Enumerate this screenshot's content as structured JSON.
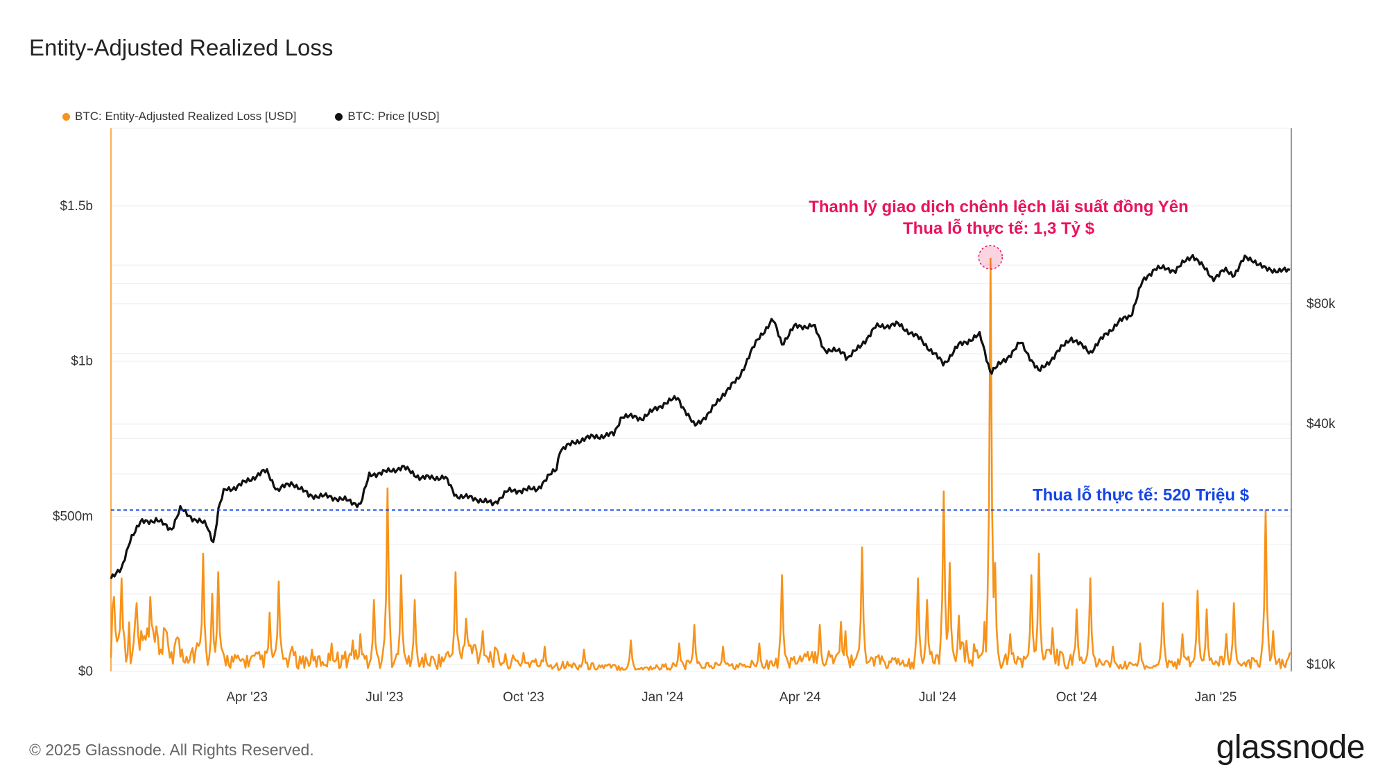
{
  "title": "Entity-Adjusted Realized Loss",
  "legend": {
    "loss_label": "BTC: Entity-Adjusted Realized Loss [USD]",
    "price_label": "BTC: Price [USD]"
  },
  "footer": "© 2025 Glassnode. All Rights Reserved.",
  "brand": "glassnode",
  "chart_data": {
    "type": "line",
    "title": "Entity-Adjusted Realized Loss",
    "x_range": [
      "2023-01-01",
      "2025-02-20"
    ],
    "x_ticks": [
      {
        "date": "2023-04-01",
        "label": "Apr '23"
      },
      {
        "date": "2023-07-01",
        "label": "Jul '23"
      },
      {
        "date": "2023-10-01",
        "label": "Oct '23"
      },
      {
        "date": "2024-01-01",
        "label": "Jan '24"
      },
      {
        "date": "2024-04-01",
        "label": "Apr '24"
      },
      {
        "date": "2024-07-01",
        "label": "Jul '24"
      },
      {
        "date": "2024-10-01",
        "label": "Oct '24"
      },
      {
        "date": "2025-01-01",
        "label": "Jan '25"
      }
    ],
    "y_left": {
      "min": 0,
      "max": 1750000000,
      "ticks": [
        {
          "value": 0,
          "label": "$0"
        },
        {
          "value": 500000000,
          "label": "$500m"
        },
        {
          "value": 1000000000,
          "label": "$1b"
        },
        {
          "value": 1500000000,
          "label": "$1.5b"
        }
      ]
    },
    "y_right": {
      "scale": "log",
      "min": 9600,
      "max": 220000,
      "ticks": [
        {
          "value": 10000,
          "label": "$10k"
        },
        {
          "value": 40000,
          "label": "$40k"
        },
        {
          "value": 80000,
          "label": "$80k"
        }
      ]
    },
    "series": [
      {
        "name": "BTC: Entity-Adjusted Realized Loss [USD]",
        "color": "#f7931a",
        "axis": "left",
        "baseline_points": [
          [
            "2023-01-01",
            120000000
          ],
          [
            "2023-01-20",
            90000000
          ],
          [
            "2023-02-10",
            70000000
          ],
          [
            "2023-03-01",
            60000000
          ],
          [
            "2023-03-25",
            30000000
          ],
          [
            "2023-04-20",
            40000000
          ],
          [
            "2023-05-15",
            30000000
          ],
          [
            "2023-06-10",
            40000000
          ],
          [
            "2023-07-05",
            35000000
          ],
          [
            "2023-08-05",
            30000000
          ],
          [
            "2023-08-25",
            70000000
          ],
          [
            "2023-09-20",
            30000000
          ],
          [
            "2023-10-20",
            20000000
          ],
          [
            "2023-11-20",
            15000000
          ],
          [
            "2023-12-20",
            10000000
          ],
          [
            "2024-01-20",
            20000000
          ],
          [
            "2024-02-20",
            15000000
          ],
          [
            "2024-03-20",
            30000000
          ],
          [
            "2024-04-20",
            40000000
          ],
          [
            "2024-05-20",
            30000000
          ],
          [
            "2024-06-20",
            20000000
          ],
          [
            "2024-07-10",
            60000000
          ],
          [
            "2024-08-20",
            35000000
          ],
          [
            "2024-09-20",
            40000000
          ],
          [
            "2024-10-20",
            20000000
          ],
          [
            "2024-11-20",
            15000000
          ],
          [
            "2024-12-20",
            30000000
          ],
          [
            "2025-01-20",
            25000000
          ],
          [
            "2025-02-20",
            35000000
          ]
        ],
        "spikes": [
          [
            "2023-01-03",
            240000000
          ],
          [
            "2023-01-08",
            300000000
          ],
          [
            "2023-01-18",
            220000000
          ],
          [
            "2023-01-27",
            240000000
          ],
          [
            "2023-02-05",
            140000000
          ],
          [
            "2023-02-14",
            110000000
          ],
          [
            "2023-03-03",
            380000000
          ],
          [
            "2023-03-09",
            250000000
          ],
          [
            "2023-03-13",
            320000000
          ],
          [
            "2023-04-16",
            190000000
          ],
          [
            "2023-04-22",
            290000000
          ],
          [
            "2023-05-01",
            80000000
          ],
          [
            "2023-05-14",
            70000000
          ],
          [
            "2023-05-27",
            90000000
          ],
          [
            "2023-06-10",
            100000000
          ],
          [
            "2023-06-15",
            120000000
          ],
          [
            "2023-06-24",
            230000000
          ],
          [
            "2023-07-03",
            590000000
          ],
          [
            "2023-07-12",
            310000000
          ],
          [
            "2023-07-21",
            230000000
          ],
          [
            "2023-08-17",
            320000000
          ],
          [
            "2023-08-24",
            170000000
          ],
          [
            "2023-09-04",
            130000000
          ],
          [
            "2023-10-01",
            60000000
          ],
          [
            "2023-10-15",
            80000000
          ],
          [
            "2023-11-10",
            70000000
          ],
          [
            "2023-12-11",
            100000000
          ],
          [
            "2024-01-12",
            90000000
          ],
          [
            "2024-01-22",
            150000000
          ],
          [
            "2024-02-10",
            80000000
          ],
          [
            "2024-03-05",
            90000000
          ],
          [
            "2024-03-20",
            310000000
          ],
          [
            "2024-04-14",
            150000000
          ],
          [
            "2024-04-28",
            160000000
          ],
          [
            "2024-05-01",
            130000000
          ],
          [
            "2024-05-12",
            400000000
          ],
          [
            "2024-06-18",
            300000000
          ],
          [
            "2024-06-24",
            230000000
          ],
          [
            "2024-07-05",
            580000000
          ],
          [
            "2024-07-09",
            350000000
          ],
          [
            "2024-07-15",
            180000000
          ],
          [
            "2024-08-01",
            160000000
          ],
          [
            "2024-08-05",
            1330000000
          ],
          [
            "2024-08-08",
            350000000
          ],
          [
            "2024-08-18",
            120000000
          ],
          [
            "2024-09-01",
            310000000
          ],
          [
            "2024-09-06",
            380000000
          ],
          [
            "2024-09-15",
            140000000
          ],
          [
            "2024-10-01",
            200000000
          ],
          [
            "2024-10-10",
            300000000
          ],
          [
            "2024-10-25",
            80000000
          ],
          [
            "2024-11-12",
            90000000
          ],
          [
            "2024-11-27",
            220000000
          ],
          [
            "2024-12-10",
            120000000
          ],
          [
            "2024-12-20",
            260000000
          ],
          [
            "2024-12-26",
            200000000
          ],
          [
            "2025-01-08",
            120000000
          ],
          [
            "2025-01-13",
            220000000
          ],
          [
            "2025-02-03",
            520000000
          ],
          [
            "2025-02-08",
            130000000
          ]
        ]
      },
      {
        "name": "BTC: Price [USD]",
        "color": "#111111",
        "axis": "right",
        "points": [
          [
            "2023-01-01",
            16600
          ],
          [
            "2023-01-08",
            17200
          ],
          [
            "2023-01-14",
            20800
          ],
          [
            "2023-01-21",
            22700
          ],
          [
            "2023-01-31",
            23000
          ],
          [
            "2023-02-10",
            21800
          ],
          [
            "2023-02-16",
            24500
          ],
          [
            "2023-02-25",
            23100
          ],
          [
            "2023-03-05",
            22400
          ],
          [
            "2023-03-10",
            20200
          ],
          [
            "2023-03-13",
            24300
          ],
          [
            "2023-03-17",
            27300
          ],
          [
            "2023-03-25",
            27800
          ],
          [
            "2023-04-11",
            30200
          ],
          [
            "2023-04-14",
            30500
          ],
          [
            "2023-04-21",
            27300
          ],
          [
            "2023-05-01",
            28500
          ],
          [
            "2023-05-12",
            26500
          ],
          [
            "2023-05-25",
            26300
          ],
          [
            "2023-06-05",
            25800
          ],
          [
            "2023-06-15",
            25100
          ],
          [
            "2023-06-21",
            29800
          ],
          [
            "2023-07-05",
            30500
          ],
          [
            "2023-07-13",
            31200
          ],
          [
            "2023-07-25",
            29300
          ],
          [
            "2023-08-10",
            29400
          ],
          [
            "2023-08-17",
            26500
          ],
          [
            "2023-09-01",
            25900
          ],
          [
            "2023-09-11",
            25200
          ],
          [
            "2023-09-20",
            27100
          ],
          [
            "2023-10-10",
            27500
          ],
          [
            "2023-10-23",
            31000
          ],
          [
            "2023-10-25",
            34500
          ],
          [
            "2023-11-10",
            36800
          ],
          [
            "2023-11-30",
            37700
          ],
          [
            "2023-12-05",
            42000
          ],
          [
            "2023-12-18",
            41300
          ],
          [
            "2024-01-02",
            45000
          ],
          [
            "2024-01-11",
            46500
          ],
          [
            "2024-01-22",
            39500
          ],
          [
            "2024-02-01",
            42600
          ],
          [
            "2024-02-10",
            47500
          ],
          [
            "2024-02-20",
            51800
          ],
          [
            "2024-02-28",
            60000
          ],
          [
            "2024-03-05",
            66000
          ],
          [
            "2024-03-14",
            73000
          ],
          [
            "2024-03-20",
            63500
          ],
          [
            "2024-03-28",
            70000
          ],
          [
            "2024-04-10",
            70500
          ],
          [
            "2024-04-17",
            61400
          ],
          [
            "2024-04-30",
            60500
          ],
          [
            "2024-05-02",
            58500
          ],
          [
            "2024-05-10",
            62000
          ],
          [
            "2024-05-21",
            70000
          ],
          [
            "2024-06-05",
            71000
          ],
          [
            "2024-06-20",
            65000
          ],
          [
            "2024-07-05",
            56500
          ],
          [
            "2024-07-15",
            63000
          ],
          [
            "2024-07-29",
            66800
          ],
          [
            "2024-08-05",
            54000
          ],
          [
            "2024-08-15",
            58000
          ],
          [
            "2024-08-25",
            64000
          ],
          [
            "2024-09-06",
            54000
          ],
          [
            "2024-09-15",
            58500
          ],
          [
            "2024-09-27",
            65800
          ],
          [
            "2024-10-10",
            60500
          ],
          [
            "2024-10-21",
            67500
          ],
          [
            "2024-10-29",
            72000
          ],
          [
            "2024-11-06",
            75000
          ],
          [
            "2024-11-13",
            90000
          ],
          [
            "2024-11-22",
            98500
          ],
          [
            "2024-12-05",
            97000
          ],
          [
            "2024-12-17",
            106000
          ],
          [
            "2024-12-30",
            92500
          ],
          [
            "2025-01-07",
            97000
          ],
          [
            "2025-01-13",
            94500
          ],
          [
            "2025-01-20",
            104000
          ],
          [
            "2025-01-26",
            103000
          ],
          [
            "2025-02-03",
            97500
          ],
          [
            "2025-02-20",
            96500
          ]
        ]
      }
    ],
    "annotations": [
      {
        "text": "Thanh lý giao dịch chênh lệch lãi suất đồng Yên",
        "color": "#e8135f"
      },
      {
        "text": "Thua lỗ thực tế: 1,3 Tỷ $",
        "color": "#e8135f",
        "date": "2024-08-05",
        "value": 1330000000
      },
      {
        "text": "Thua lỗ thực tế: 520 Triệu $",
        "color": "#1547e6",
        "value": 520000000
      }
    ],
    "grid": true,
    "legend_position": "top-left"
  }
}
